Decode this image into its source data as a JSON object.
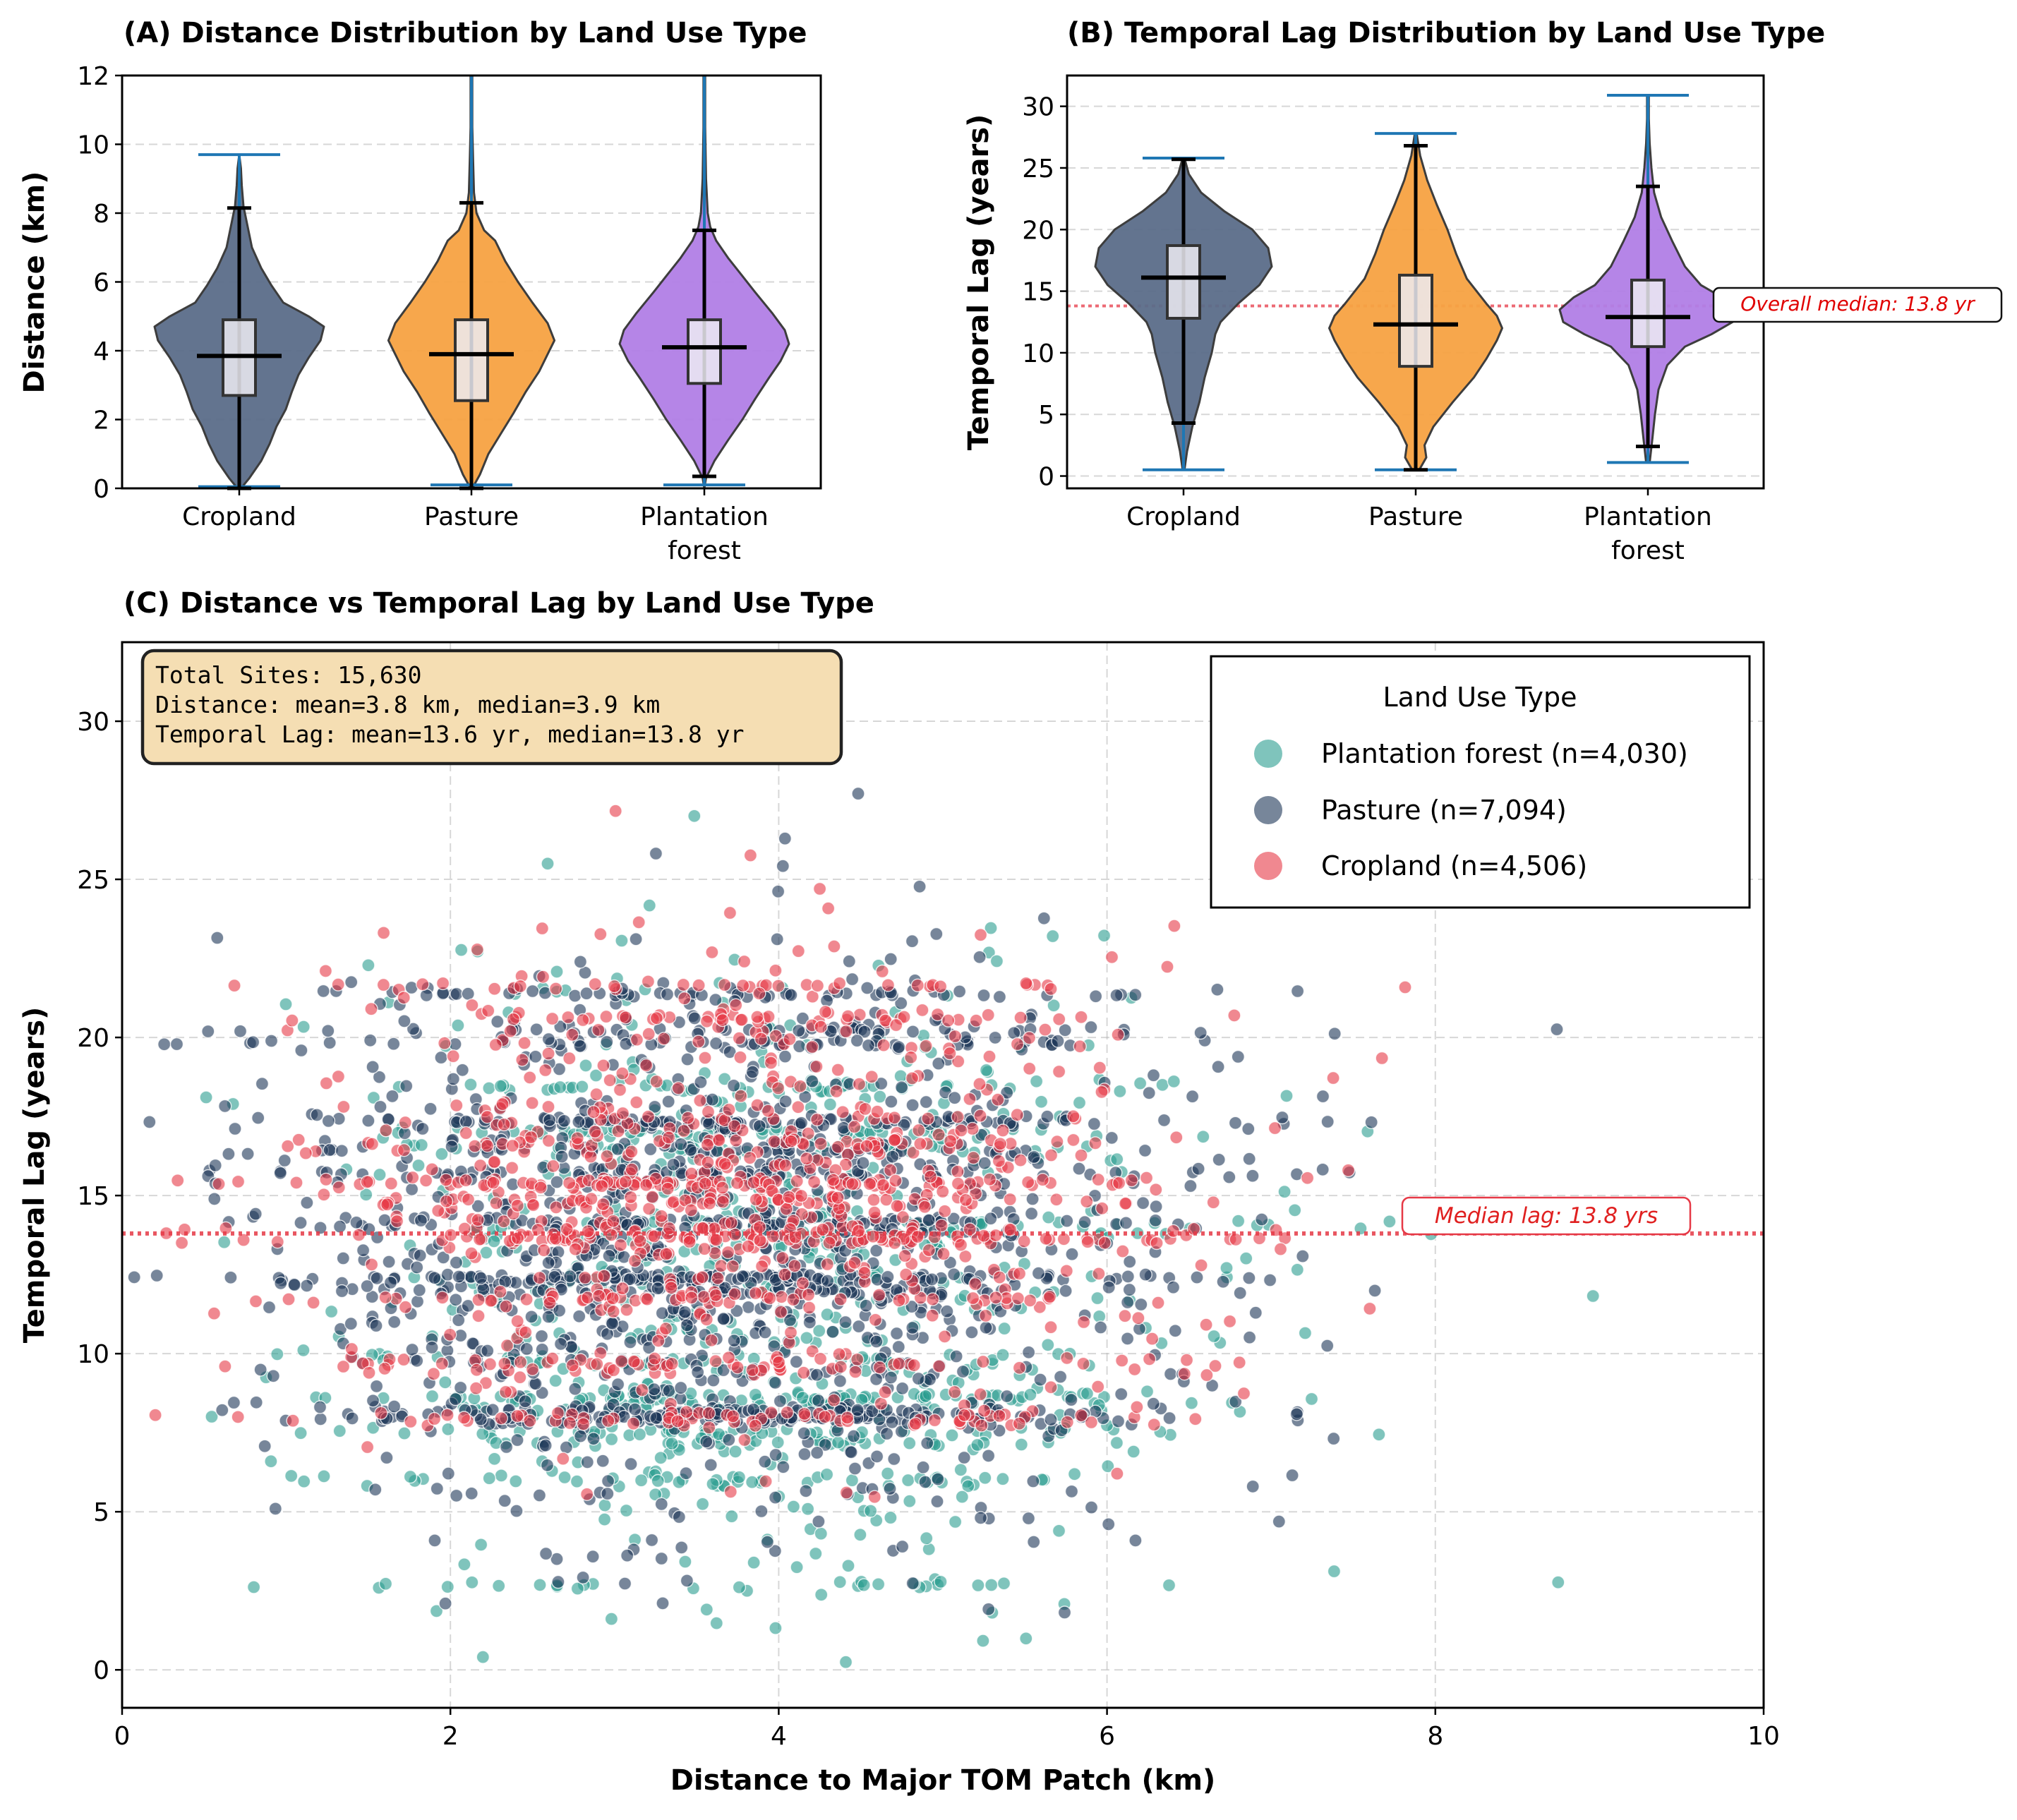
{
  "colors": {
    "cropland": "#e63946",
    "pasture": "#1d3557",
    "plantation": "#2a9d8f",
    "violin_cropland": "#5b6d8a",
    "violin_pasture": "#f7a343",
    "violin_plantation": "#b27fe6",
    "whisker": "#1f77b4",
    "median_line": "#e63946"
  },
  "chart_data": [
    {
      "id": "A",
      "type": "violin",
      "title": "(A) Distance Distribution by Land Use Type",
      "xlabel": "",
      "ylabel": "Distance (km)",
      "ylim": [
        0,
        12
      ],
      "yticks": [
        "0",
        "2",
        "4",
        "6",
        "8",
        "10",
        "12"
      ],
      "categories": [
        "Cropland",
        "Pasture",
        "Plantation\nforest"
      ],
      "category_lines": [
        [
          "Cropland"
        ],
        [
          "Pasture"
        ],
        [
          "Plantation",
          "forest"
        ]
      ],
      "stats": [
        {
          "min": 0.05,
          "max": 9.7,
          "q1": 2.7,
          "median": 3.85,
          "q3": 4.9,
          "wlow": 0.0,
          "whigh": 8.15
        },
        {
          "min": 0.1,
          "max": 12.0,
          "q1": 2.55,
          "median": 3.9,
          "q3": 4.9,
          "wlow": 0.0,
          "whigh": 8.3
        },
        {
          "min": 0.1,
          "max": 12.0,
          "q1": 3.05,
          "median": 4.1,
          "q3": 4.9,
          "wlow": 0.35,
          "whigh": 7.5
        }
      ],
      "density": [
        [
          [
            0,
            0.02
          ],
          [
            0.3,
            0.12
          ],
          [
            0.8,
            0.26
          ],
          [
            1.3,
            0.36
          ],
          [
            1.8,
            0.44
          ],
          [
            2.3,
            0.55
          ],
          [
            2.8,
            0.62
          ],
          [
            3.3,
            0.7
          ],
          [
            3.8,
            0.82
          ],
          [
            4.3,
            0.96
          ],
          [
            4.7,
            1.0
          ],
          [
            5.0,
            0.82
          ],
          [
            5.4,
            0.52
          ],
          [
            5.9,
            0.38
          ],
          [
            6.4,
            0.26
          ],
          [
            7.0,
            0.15
          ],
          [
            7.6,
            0.1
          ],
          [
            8.2,
            0.05
          ],
          [
            8.8,
            0.03
          ],
          [
            9.3,
            0.02
          ],
          [
            9.7,
            0.0
          ]
        ],
        [
          [
            0,
            0.01
          ],
          [
            0.4,
            0.1
          ],
          [
            1.0,
            0.2
          ],
          [
            1.6,
            0.35
          ],
          [
            2.2,
            0.5
          ],
          [
            2.8,
            0.64
          ],
          [
            3.4,
            0.8
          ],
          [
            3.9,
            0.9
          ],
          [
            4.3,
            0.98
          ],
          [
            4.8,
            0.9
          ],
          [
            5.4,
            0.72
          ],
          [
            6.0,
            0.55
          ],
          [
            6.6,
            0.4
          ],
          [
            7.2,
            0.28
          ],
          [
            7.5,
            0.15
          ],
          [
            8.0,
            0.06
          ],
          [
            8.6,
            0.03
          ],
          [
            9.5,
            0.02
          ],
          [
            10.5,
            0.01
          ],
          [
            12.0,
            0.01
          ]
        ],
        [
          [
            0,
            0.0
          ],
          [
            0.3,
            0.02
          ],
          [
            0.8,
            0.12
          ],
          [
            1.4,
            0.28
          ],
          [
            2.0,
            0.45
          ],
          [
            2.6,
            0.6
          ],
          [
            3.2,
            0.76
          ],
          [
            3.7,
            0.9
          ],
          [
            4.2,
            1.0
          ],
          [
            4.6,
            0.95
          ],
          [
            5.1,
            0.8
          ],
          [
            5.7,
            0.6
          ],
          [
            6.2,
            0.44
          ],
          [
            6.7,
            0.28
          ],
          [
            7.2,
            0.14
          ],
          [
            7.6,
            0.07
          ],
          [
            8.0,
            0.04
          ],
          [
            9.0,
            0.02
          ],
          [
            10.5,
            0.01
          ],
          [
            12.0,
            0.01
          ]
        ]
      ]
    },
    {
      "id": "B",
      "type": "violin",
      "title": "(B) Temporal Lag Distribution by Land Use Type",
      "xlabel": "",
      "ylabel": "Temporal Lag (years)",
      "ylim": [
        -1,
        32.5
      ],
      "yticks": [
        "0",
        "5",
        "10",
        "15",
        "20",
        "25",
        "30"
      ],
      "categories": [
        "Cropland",
        "Pasture",
        "Plantation\nforest"
      ],
      "category_lines": [
        [
          "Cropland"
        ],
        [
          "Pasture"
        ],
        [
          "Plantation",
          "forest"
        ]
      ],
      "reference_value": 13.8,
      "reference_label": "Overall median: 13.8 yr",
      "stats": [
        {
          "min": 0.5,
          "max": 25.8,
          "q1": 12.8,
          "median": 16.1,
          "q3": 18.7,
          "wlow": 4.3,
          "whigh": 25.7
        },
        {
          "min": 0.5,
          "max": 27.8,
          "q1": 8.9,
          "median": 12.3,
          "q3": 16.3,
          "wlow": 0.5,
          "whigh": 26.8
        },
        {
          "min": 1.1,
          "max": 30.9,
          "q1": 10.5,
          "median": 12.9,
          "q3": 15.9,
          "wlow": 2.4,
          "whigh": 23.5
        }
      ],
      "density": [
        [
          [
            0.5,
            0.01
          ],
          [
            2,
            0.04
          ],
          [
            4,
            0.1
          ],
          [
            6,
            0.18
          ],
          [
            8,
            0.24
          ],
          [
            10,
            0.32
          ],
          [
            11.5,
            0.36
          ],
          [
            12.5,
            0.42
          ],
          [
            14,
            0.62
          ],
          [
            15.5,
            0.86
          ],
          [
            17,
            1.0
          ],
          [
            18.5,
            0.96
          ],
          [
            20,
            0.78
          ],
          [
            21.5,
            0.46
          ],
          [
            23,
            0.2
          ],
          [
            24.5,
            0.06
          ],
          [
            25.8,
            0.01
          ]
        ],
        [
          [
            0.5,
            0.04
          ],
          [
            1.5,
            0.12
          ],
          [
            2.5,
            0.1
          ],
          [
            4,
            0.2
          ],
          [
            6,
            0.42
          ],
          [
            8,
            0.66
          ],
          [
            9.5,
            0.8
          ],
          [
            11,
            0.92
          ],
          [
            12,
            0.98
          ],
          [
            13,
            0.92
          ],
          [
            14,
            0.8
          ],
          [
            16,
            0.58
          ],
          [
            18,
            0.46
          ],
          [
            20,
            0.36
          ],
          [
            22,
            0.24
          ],
          [
            24,
            0.13
          ],
          [
            26,
            0.05
          ],
          [
            27.8,
            0.01
          ]
        ],
        [
          [
            1.1,
            0.02
          ],
          [
            3,
            0.05
          ],
          [
            5,
            0.08
          ],
          [
            7,
            0.12
          ],
          [
            9,
            0.22
          ],
          [
            10.5,
            0.42
          ],
          [
            11.5,
            0.72
          ],
          [
            12.5,
            0.96
          ],
          [
            13.5,
            1.0
          ],
          [
            14.5,
            0.84
          ],
          [
            15.5,
            0.6
          ],
          [
            17,
            0.42
          ],
          [
            19,
            0.28
          ],
          [
            21,
            0.15
          ],
          [
            23,
            0.07
          ],
          [
            25,
            0.04
          ],
          [
            27,
            0.02
          ],
          [
            29,
            0.01
          ],
          [
            30.9,
            0.01
          ]
        ]
      ]
    },
    {
      "id": "C",
      "type": "scatter",
      "title": "(C) Distance vs Temporal Lag by Land Use Type",
      "xlabel": "Distance to Major TOM Patch (km)",
      "ylabel": "Temporal Lag (years)",
      "xlim": [
        0,
        10
      ],
      "ylim": [
        -1.2,
        32.5
      ],
      "xticks": [
        "0",
        "2",
        "4",
        "6",
        "8",
        "10"
      ],
      "yticks": [
        "0",
        "5",
        "10",
        "15",
        "20",
        "25",
        "30"
      ],
      "grid": true,
      "reference_value": 13.8,
      "reference_label": "Median lag: 13.8 yrs",
      "legend_position": "top-right",
      "legend_title": "Land Use Type",
      "series": [
        {
          "name": "Plantation forest (n=4,030)",
          "color_key": "plantation",
          "n": 4030,
          "dist_mean": 3.9,
          "dist_sd": 1.3,
          "lag_mean": 12.4,
          "lag_sd": 5.0
        },
        {
          "name": "Pasture (n=7,094)",
          "color_key": "pasture",
          "n": 7094,
          "dist_mean": 3.7,
          "dist_sd": 1.35,
          "lag_mean": 13.2,
          "lag_sd": 4.6
        },
        {
          "name": "Cropland (n=4,506)",
          "color_key": "cropland",
          "n": 4506,
          "dist_mean": 3.8,
          "dist_sd": 1.3,
          "lag_mean": 15.2,
          "lag_sd": 3.7
        }
      ],
      "summary_lines": [
        "Total Sites: 15,630",
        "Distance: mean=3.8 km, median=3.9 km",
        "Temporal Lag: mean=13.6 yr, median=13.8 yr"
      ]
    }
  ]
}
